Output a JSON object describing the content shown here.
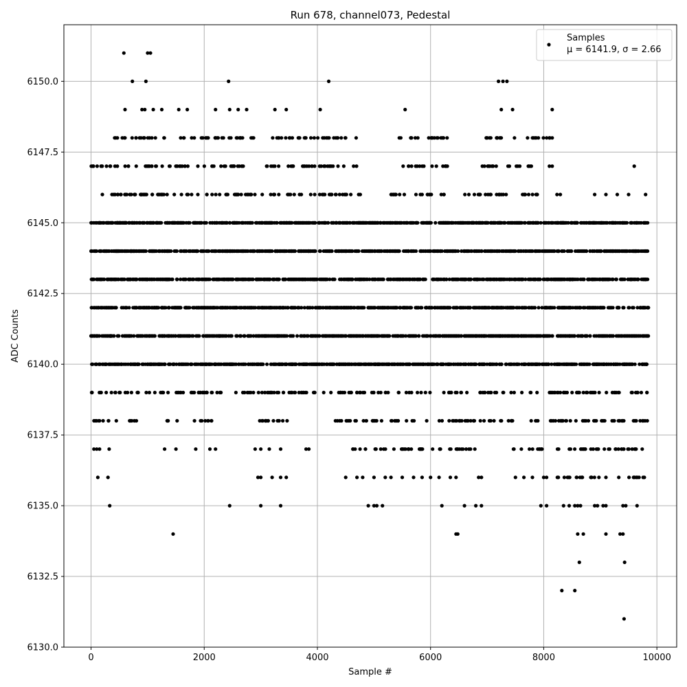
{
  "chart_data": {
    "type": "scatter",
    "title": "Run 678, channel073, Pedestal",
    "xlabel": "Sample #",
    "ylabel": "ADC Counts",
    "xlim": [
      -480,
      10350
    ],
    "ylim": [
      6130,
      6152
    ],
    "x_ticks": [
      0,
      2000,
      4000,
      6000,
      8000,
      10000
    ],
    "x_tick_labels": [
      "0",
      "2000",
      "4000",
      "6000",
      "8000",
      "10000"
    ],
    "y_ticks": [
      6130,
      6132.5,
      6135,
      6137.5,
      6140,
      6142.5,
      6145,
      6147.5,
      6150
    ],
    "y_tick_labels": [
      "6130.0",
      "6132.5",
      "6135.0",
      "6137.5",
      "6140.0",
      "6142.5",
      "6145.0",
      "6147.5",
      "6150.0"
    ],
    "grid": true,
    "legend": {
      "placement": "top-right",
      "entries": [
        {
          "name": "Samples",
          "subtitle": "μ = 6141.9, σ = 2.66"
        }
      ]
    },
    "marker_color": "#000000",
    "series": [
      {
        "name": "Samples",
        "sample_range": [
          0,
          9850
        ],
        "levels": [
          {
            "y": 6140,
            "x_ranges": [
              [
                0,
                9850
              ]
            ]
          },
          {
            "y": 6141,
            "x_ranges": [
              [
                0,
                9850
              ]
            ]
          },
          {
            "y": 6142,
            "x_ranges": [
              [
                0,
                9850
              ]
            ]
          },
          {
            "y": 6143,
            "x_ranges": [
              [
                0,
                9850
              ]
            ]
          },
          {
            "y": 6144,
            "x_ranges": [
              [
                0,
                9850
              ]
            ]
          },
          {
            "y": 6145,
            "x_ranges": [
              [
                0,
                9850
              ]
            ]
          },
          {
            "y": 6139,
            "x_ranges": [
              [
                0,
                7300
              ],
              [
                7400,
                9850
              ]
            ]
          },
          {
            "y": 6146,
            "x_ranges": [
              [
                350,
                4800
              ],
              [
                5300,
                6250
              ],
              [
                6600,
                7900
              ],
              [
                8200,
                8300
              ]
            ]
          },
          {
            "y": 6147,
            "x_ranges": [
              [
                0,
                2700
              ],
              [
                3100,
                4700
              ],
              [
                5500,
                6300
              ],
              [
                6900,
                7800
              ]
            ]
          },
          {
            "y": 6148,
            "x_ranges": [
              [
                350,
                1300
              ],
              [
                1500,
                2900
              ],
              [
                3200,
                4700
              ],
              [
                5400,
                6300
              ],
              [
                6900,
                7500
              ],
              [
                7700,
                8150
              ]
            ]
          },
          {
            "y": 6138,
            "x_ranges": [
              [
                0,
                450
              ],
              [
                600,
                900
              ],
              [
                1300,
                1550
              ],
              [
                1800,
                2200
              ],
              [
                2900,
                3600
              ],
              [
                4250,
                9850
              ]
            ]
          },
          {
            "y": 6137,
            "x_ranges": [
              [
                4600,
                5700
              ],
              [
                5800,
                6900
              ],
              [
                7450,
                8000
              ],
              [
                8200,
                9850
              ]
            ]
          },
          {
            "y": 6136,
            "x_ranges": [
              [
                8200,
                9000
              ],
              [
                9300,
                9800
              ]
            ]
          }
        ],
        "isolated_points": [
          [
            30,
            6147
          ],
          [
            200,
            6146
          ],
          [
            580,
            6151
          ],
          [
            600,
            6149
          ],
          [
            730,
            6150
          ],
          [
            970,
            6150
          ],
          [
            1000,
            6151
          ],
          [
            1050,
            6151
          ],
          [
            900,
            6149
          ],
          [
            950,
            6149
          ],
          [
            1100,
            6149
          ],
          [
            1250,
            6149
          ],
          [
            1550,
            6149
          ],
          [
            1700,
            6149
          ],
          [
            2200,
            6149
          ],
          [
            2450,
            6149
          ],
          [
            2600,
            6149
          ],
          [
            2750,
            6149
          ],
          [
            2430,
            6150
          ],
          [
            4200,
            6150
          ],
          [
            3250,
            6149
          ],
          [
            3450,
            6149
          ],
          [
            4050,
            6149
          ],
          [
            5550,
            6149
          ],
          [
            7200,
            6150
          ],
          [
            7280,
            6150
          ],
          [
            7350,
            6150
          ],
          [
            7250,
            6149
          ],
          [
            7450,
            6149
          ],
          [
            8150,
            6149
          ],
          [
            8100,
            6148
          ],
          [
            8150,
            6148
          ],
          [
            8100,
            6147
          ],
          [
            8150,
            6147
          ],
          [
            9600,
            6147
          ],
          [
            8900,
            6146
          ],
          [
            9100,
            6146
          ],
          [
            9300,
            6146
          ],
          [
            9500,
            6146
          ],
          [
            9800,
            6146
          ],
          [
            50,
            6137
          ],
          [
            100,
            6137
          ],
          [
            150,
            6137
          ],
          [
            320,
            6137
          ],
          [
            1300,
            6137
          ],
          [
            1500,
            6137
          ],
          [
            1850,
            6137
          ],
          [
            2100,
            6137
          ],
          [
            2200,
            6137
          ],
          [
            2900,
            6137
          ],
          [
            3000,
            6137
          ],
          [
            3150,
            6137
          ],
          [
            3350,
            6137
          ],
          [
            3800,
            6137
          ],
          [
            3850,
            6137
          ],
          [
            120,
            6136
          ],
          [
            300,
            6136
          ],
          [
            2950,
            6136
          ],
          [
            3000,
            6136
          ],
          [
            3200,
            6136
          ],
          [
            3350,
            6136
          ],
          [
            3450,
            6136
          ],
          [
            4500,
            6136
          ],
          [
            4700,
            6136
          ],
          [
            4800,
            6136
          ],
          [
            5000,
            6136
          ],
          [
            5200,
            6136
          ],
          [
            5300,
            6136
          ],
          [
            5500,
            6136
          ],
          [
            5700,
            6136
          ],
          [
            5850,
            6136
          ],
          [
            6000,
            6136
          ],
          [
            6150,
            6136
          ],
          [
            6350,
            6136
          ],
          [
            6450,
            6136
          ],
          [
            6850,
            6136
          ],
          [
            6900,
            6136
          ],
          [
            7500,
            6136
          ],
          [
            7650,
            6136
          ],
          [
            7800,
            6136
          ],
          [
            8000,
            6136
          ],
          [
            8050,
            6136
          ],
          [
            9100,
            6136
          ],
          [
            330,
            6135
          ],
          [
            2450,
            6135
          ],
          [
            3000,
            6135
          ],
          [
            3350,
            6135
          ],
          [
            4900,
            6135
          ],
          [
            5000,
            6135
          ],
          [
            5050,
            6135
          ],
          [
            5150,
            6135
          ],
          [
            6200,
            6135
          ],
          [
            6600,
            6135
          ],
          [
            6800,
            6135
          ],
          [
            6900,
            6135
          ],
          [
            7950,
            6135
          ],
          [
            8050,
            6135
          ],
          [
            8350,
            6135
          ],
          [
            8450,
            6135
          ],
          [
            8550,
            6135
          ],
          [
            8600,
            6135
          ],
          [
            8650,
            6135
          ],
          [
            8900,
            6135
          ],
          [
            8950,
            6135
          ],
          [
            9050,
            6135
          ],
          [
            9100,
            6135
          ],
          [
            9400,
            6135
          ],
          [
            9450,
            6135
          ],
          [
            9650,
            6135
          ],
          [
            1450,
            6134
          ],
          [
            6450,
            6134
          ],
          [
            6480,
            6134
          ],
          [
            8600,
            6134
          ],
          [
            8700,
            6134
          ],
          [
            9100,
            6134
          ],
          [
            9350,
            6134
          ],
          [
            9400,
            6134
          ],
          [
            8630,
            6133
          ],
          [
            9430,
            6133
          ],
          [
            8320,
            6132
          ],
          [
            8550,
            6132
          ],
          [
            9420,
            6131
          ]
        ]
      }
    ]
  }
}
